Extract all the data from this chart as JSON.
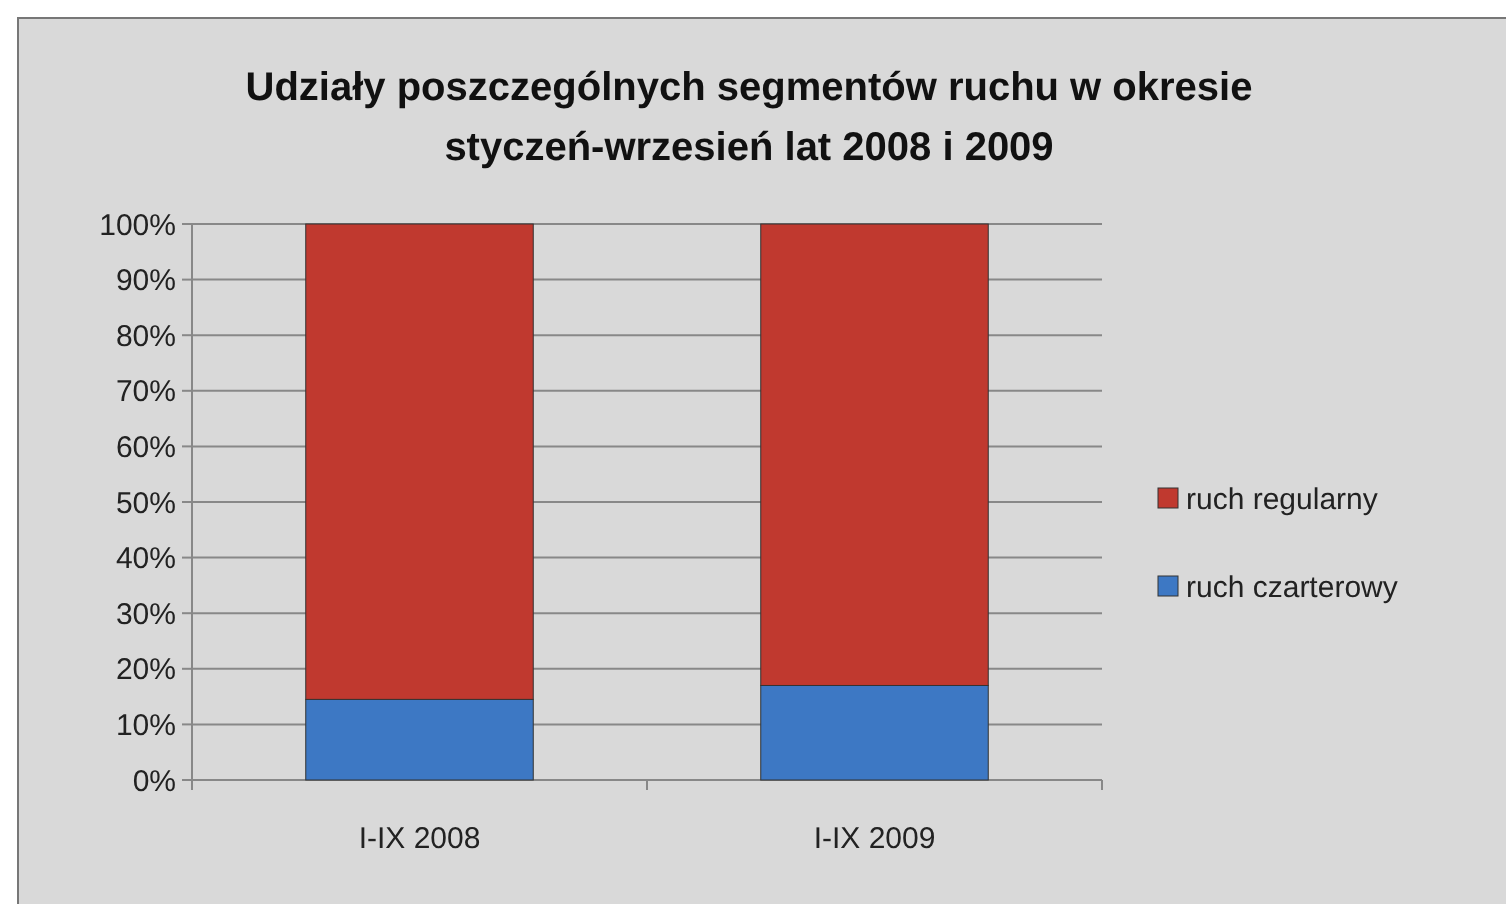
{
  "chart_data": {
    "type": "bar",
    "title": "Udziały poszczególnych segmentów ruchu w okresie styczeń-wrzesień lat 2008 i 2009",
    "categories": [
      "I-IX 2008",
      "I-IX 2009"
    ],
    "series": [
      {
        "name": "ruch czarterowy",
        "color": "#3d78c4",
        "values": [
          14.5,
          17
        ]
      },
      {
        "name": "ruch regularny",
        "color": "#c0392f",
        "values": [
          85.5,
          83
        ]
      }
    ],
    "stacked": true,
    "ylim": [
      0,
      100
    ],
    "yticks": [
      {
        "value": 0,
        "label": "0%"
      },
      {
        "value": 10,
        "label": "10%"
      },
      {
        "value": 20,
        "label": "20%"
      },
      {
        "value": 30,
        "label": "30%"
      },
      {
        "value": 40,
        "label": "40%"
      },
      {
        "value": 50,
        "label": "50%"
      },
      {
        "value": 60,
        "label": "60%"
      },
      {
        "value": 70,
        "label": "70%"
      },
      {
        "value": 80,
        "label": "80%"
      },
      {
        "value": 90,
        "label": "90%"
      },
      {
        "value": 100,
        "label": "100%"
      }
    ],
    "grid": "y",
    "legend": "right"
  }
}
